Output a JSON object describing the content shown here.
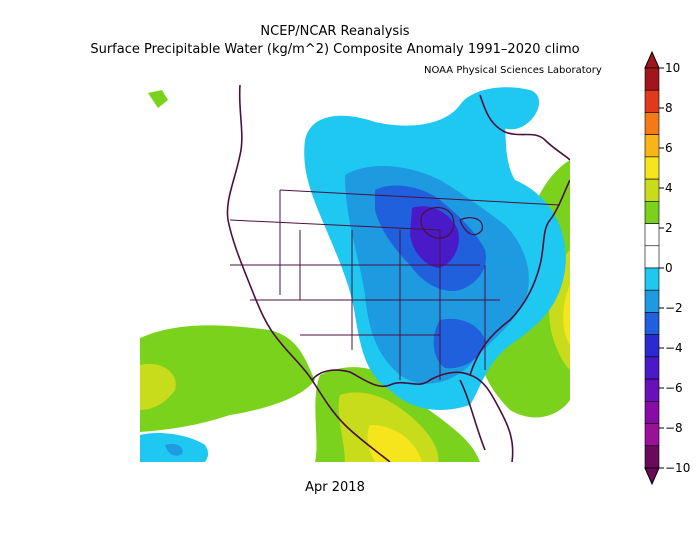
{
  "header": {
    "title": "NCEP/NCAR Reanalysis",
    "subtitle": "Surface Precipitable Water (kg/m^2) Composite Anomaly 1991–2020 climo",
    "credit": "NOAA Physical Sciences Laboratory"
  },
  "footer": {
    "date": "Apr 2018"
  },
  "colorbar": {
    "ticks": [
      "10",
      "8",
      "6",
      "4",
      "2",
      "0",
      "−2",
      "−4",
      "−6",
      "−8",
      "−10"
    ],
    "colors": [
      "#a0161a",
      "#e03a1c",
      "#f57a16",
      "#f9b418",
      "#f7e51c",
      "#c8dc1c",
      "#7ad21c",
      "#ffffff",
      "#ffffff",
      "#1ec8f0",
      "#1e9ae0",
      "#2060dc",
      "#2a2ad0",
      "#4a1ac8",
      "#6a10b8",
      "#8a0aa8",
      "#9a1098",
      "#6a0a5a"
    ]
  }
}
